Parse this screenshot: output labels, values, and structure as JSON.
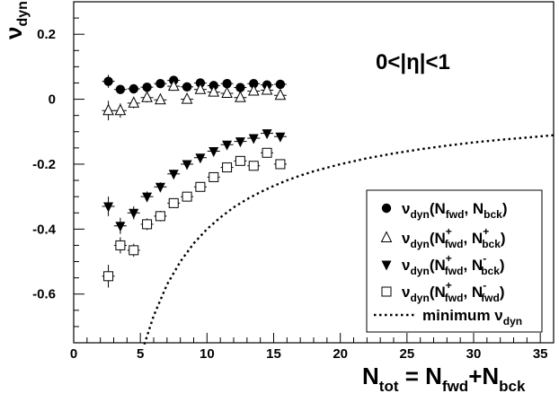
{
  "chart_data": {
    "type": "scatter",
    "xlabel": {
      "main": "N",
      "sub": "tot",
      "rest1": " = N",
      "sub2": "fwd",
      "rest2": "+N",
      "sub3": "bck"
    },
    "ylabel": {
      "main": "ν",
      "sub": "dyn"
    },
    "annotation": "0<|η|<1",
    "xlim": [
      0,
      36
    ],
    "ylim": [
      -0.75,
      0.3
    ],
    "x_ticks": [
      0,
      5,
      10,
      15,
      20,
      25,
      30,
      35
    ],
    "y_ticks": [
      -0.6,
      -0.4,
      -0.2,
      0,
      0.2
    ],
    "x_tick_labels": [
      "0",
      "5",
      "10",
      "15",
      "20",
      "25",
      "30",
      "35"
    ],
    "y_tick_labels": [
      "-0.6",
      "-0.4",
      "-0.2",
      "0",
      "0.2"
    ],
    "legend_position": "bottom-right",
    "series": [
      {
        "marker": "filled-circle",
        "legend": {
          "main": "ν",
          "sub": "dyn",
          "args": "(N",
          "a1sub": "fwd",
          "a1sup": "",
          "mid": ", N",
          "a2sub": "bck",
          "a2sup": "",
          "end": ")"
        },
        "x": [
          2.6,
          3.5,
          4.5,
          5.5,
          6.5,
          7.5,
          8.5,
          9.5,
          10.5,
          11.5,
          12.5,
          13.5,
          14.5,
          15.5
        ],
        "y": [
          0.055,
          0.03,
          0.032,
          0.037,
          0.048,
          0.058,
          0.038,
          0.05,
          0.042,
          0.048,
          0.036,
          0.048,
          0.044,
          0.046
        ],
        "err": [
          0.02,
          0.012,
          0.01,
          0.01,
          0.01,
          0.01,
          0.01,
          0.01,
          0.01,
          0.01,
          0.01,
          0.01,
          0.01,
          0.01
        ]
      },
      {
        "marker": "open-triangle-up",
        "legend": {
          "main": "ν",
          "sub": "dyn",
          "args": "(N",
          "a1sub": "fwd",
          "a1sup": "+",
          "mid": ", N",
          "a2sub": "bck",
          "a2sup": "+",
          "end": ")"
        },
        "x": [
          2.6,
          3.5,
          4.5,
          5.5,
          6.5,
          7.5,
          8.5,
          9.5,
          10.5,
          11.5,
          12.5,
          13.5,
          14.5,
          15.5
        ],
        "y": [
          -0.035,
          -0.035,
          -0.012,
          0.005,
          -0.002,
          0.04,
          0.0,
          0.03,
          0.022,
          0.018,
          0.005,
          0.025,
          0.028,
          0.012
        ],
        "err": [
          0.03,
          0.022,
          0.016,
          0.015,
          0.013,
          0.013,
          0.012,
          0.012,
          0.012,
          0.012,
          0.012,
          0.012,
          0.012,
          0.014
        ]
      },
      {
        "marker": "filled-triangle-down",
        "legend": {
          "main": "ν",
          "sub": "dyn",
          "args": "(N",
          "a1sub": "fwd",
          "a1sup": "+",
          "mid": ", N",
          "a2sub": "bck",
          "a2sup": "-",
          "end": ")"
        },
        "x": [
          2.6,
          3.5,
          4.5,
          5.5,
          6.5,
          7.5,
          8.5,
          9.5,
          10.5,
          11.5,
          12.5,
          13.5,
          14.5,
          15.5
        ],
        "y": [
          -0.33,
          -0.39,
          -0.35,
          -0.3,
          -0.27,
          -0.23,
          -0.2,
          -0.18,
          -0.16,
          -0.14,
          -0.13,
          -0.12,
          -0.105,
          -0.115
        ],
        "err": [
          0.03,
          0.025,
          0.02,
          0.016,
          0.014,
          0.013,
          0.012,
          0.012,
          0.012,
          0.012,
          0.012,
          0.012,
          0.012,
          0.012
        ]
      },
      {
        "marker": "open-square",
        "legend": {
          "main": "ν",
          "sub": "dyn",
          "args": "(N",
          "a1sub": "fwd",
          "a1sup": "+",
          "mid": ", N",
          "a2sub": "fwd",
          "a2sup": "-",
          "end": ")"
        },
        "x": [
          2.6,
          3.5,
          4.5,
          5.5,
          6.5,
          7.5,
          8.5,
          9.5,
          10.5,
          11.5,
          12.5,
          13.5,
          14.5,
          15.5
        ],
        "y": [
          -0.545,
          -0.45,
          -0.465,
          -0.385,
          -0.36,
          -0.32,
          -0.3,
          -0.27,
          -0.24,
          -0.21,
          -0.19,
          -0.205,
          -0.165,
          -0.2
        ],
        "err": [
          0.035,
          0.025,
          0.02,
          0.018,
          0.016,
          0.015,
          0.014,
          0.014,
          0.014,
          0.014,
          0.014,
          0.014,
          0.014,
          0.014
        ]
      }
    ],
    "curve": {
      "legend": {
        "main": "minimum ν",
        "sub": "dyn"
      },
      "style": "dotted",
      "x": [
        5.3,
        6,
        7,
        8,
        9,
        10,
        11,
        12,
        13,
        14,
        15,
        16,
        17,
        18,
        19,
        20,
        22,
        24,
        26,
        28,
        30,
        32,
        34,
        36
      ],
      "y": [
        -0.755,
        -0.667,
        -0.571,
        -0.5,
        -0.444,
        -0.4,
        -0.364,
        -0.333,
        -0.308,
        -0.286,
        -0.267,
        -0.25,
        -0.235,
        -0.222,
        -0.211,
        -0.2,
        -0.182,
        -0.167,
        -0.154,
        -0.143,
        -0.133,
        -0.125,
        -0.118,
        -0.111
      ]
    }
  }
}
